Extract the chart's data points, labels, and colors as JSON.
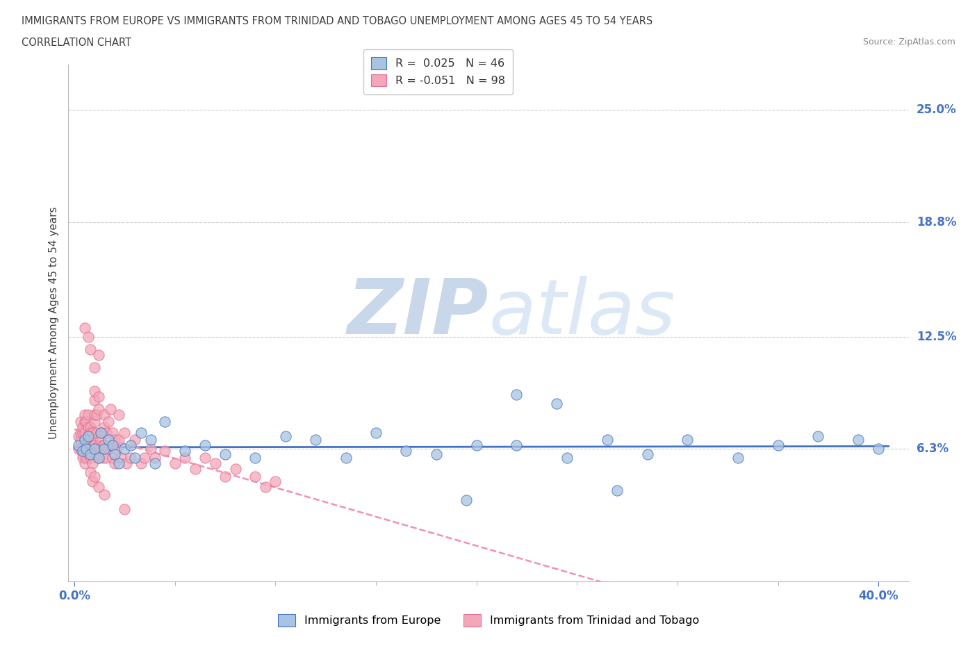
{
  "title_line1": "IMMIGRANTS FROM EUROPE VS IMMIGRANTS FROM TRINIDAD AND TOBAGO UNEMPLOYMENT AMONG AGES 45 TO 54 YEARS",
  "title_line2": "CORRELATION CHART",
  "source_text": "Source: ZipAtlas.com",
  "ylabel": "Unemployment Among Ages 45 to 54 years",
  "europe_color": "#a8c4e0",
  "europe_edge_color": "#4472c4",
  "tt_color": "#f4a7b9",
  "tt_edge_color": "#e07090",
  "europe_line_color": "#4472c4",
  "tt_line_color": "#f48fb1",
  "watermark_color": "#dce6f0",
  "background_color": "#ffffff",
  "grid_color": "#cccccc",
  "title_color": "#404040",
  "axis_label_color": "#4472c4",
  "ytick_values": [
    0.063,
    0.125,
    0.188,
    0.25
  ],
  "ytick_labels": [
    "6.3%",
    "12.5%",
    "18.8%",
    "25.0%"
  ],
  "xlim": [
    -0.003,
    0.415
  ],
  "ylim": [
    -0.01,
    0.275
  ],
  "europe_x": [
    0.002,
    0.004,
    0.005,
    0.006,
    0.007,
    0.008,
    0.01,
    0.012,
    0.013,
    0.015,
    0.017,
    0.019,
    0.02,
    0.022,
    0.025,
    0.028,
    0.03,
    0.033,
    0.038,
    0.04,
    0.045,
    0.055,
    0.065,
    0.075,
    0.09,
    0.105,
    0.12,
    0.135,
    0.15,
    0.165,
    0.18,
    0.2,
    0.22,
    0.245,
    0.265,
    0.285,
    0.305,
    0.33,
    0.35,
    0.37,
    0.39,
    0.4,
    0.22,
    0.24,
    0.195,
    0.27
  ],
  "europe_y": [
    0.065,
    0.062,
    0.068,
    0.063,
    0.07,
    0.06,
    0.063,
    0.058,
    0.072,
    0.063,
    0.068,
    0.065,
    0.06,
    0.055,
    0.063,
    0.065,
    0.058,
    0.072,
    0.068,
    0.055,
    0.078,
    0.062,
    0.065,
    0.06,
    0.058,
    0.07,
    0.068,
    0.058,
    0.072,
    0.062,
    0.06,
    0.065,
    0.065,
    0.058,
    0.068,
    0.06,
    0.068,
    0.058,
    0.065,
    0.07,
    0.068,
    0.063,
    0.093,
    0.088,
    0.035,
    0.04
  ],
  "tt_x": [
    0.002,
    0.002,
    0.003,
    0.003,
    0.003,
    0.003,
    0.004,
    0.004,
    0.004,
    0.004,
    0.004,
    0.005,
    0.005,
    0.005,
    0.005,
    0.005,
    0.006,
    0.006,
    0.006,
    0.006,
    0.007,
    0.007,
    0.007,
    0.007,
    0.007,
    0.008,
    0.008,
    0.008,
    0.008,
    0.008,
    0.009,
    0.009,
    0.009,
    0.009,
    0.01,
    0.01,
    0.01,
    0.01,
    0.01,
    0.011,
    0.011,
    0.011,
    0.012,
    0.012,
    0.012,
    0.012,
    0.013,
    0.013,
    0.013,
    0.014,
    0.014,
    0.014,
    0.015,
    0.015,
    0.015,
    0.016,
    0.016,
    0.017,
    0.017,
    0.018,
    0.018,
    0.019,
    0.019,
    0.02,
    0.02,
    0.021,
    0.022,
    0.022,
    0.023,
    0.025,
    0.026,
    0.028,
    0.03,
    0.033,
    0.035,
    0.038,
    0.04,
    0.045,
    0.05,
    0.055,
    0.06,
    0.065,
    0.07,
    0.075,
    0.08,
    0.09,
    0.095,
    0.1,
    0.005,
    0.007,
    0.008,
    0.01,
    0.012,
    0.008,
    0.009,
    0.01,
    0.012,
    0.015,
    0.025
  ],
  "tt_y": [
    0.063,
    0.07,
    0.063,
    0.068,
    0.072,
    0.078,
    0.065,
    0.06,
    0.058,
    0.072,
    0.075,
    0.063,
    0.055,
    0.072,
    0.078,
    0.082,
    0.065,
    0.078,
    0.058,
    0.062,
    0.082,
    0.06,
    0.068,
    0.075,
    0.07,
    0.075,
    0.068,
    0.058,
    0.065,
    0.072,
    0.072,
    0.063,
    0.055,
    0.068,
    0.09,
    0.095,
    0.065,
    0.078,
    0.082,
    0.072,
    0.06,
    0.082,
    0.085,
    0.092,
    0.058,
    0.065,
    0.072,
    0.068,
    0.063,
    0.058,
    0.072,
    0.065,
    0.075,
    0.082,
    0.065,
    0.072,
    0.058,
    0.063,
    0.078,
    0.065,
    0.085,
    0.058,
    0.072,
    0.068,
    0.055,
    0.063,
    0.068,
    0.082,
    0.058,
    0.072,
    0.055,
    0.058,
    0.068,
    0.055,
    0.058,
    0.063,
    0.058,
    0.062,
    0.055,
    0.058,
    0.052,
    0.058,
    0.055,
    0.048,
    0.052,
    0.048,
    0.042,
    0.045,
    0.13,
    0.125,
    0.118,
    0.108,
    0.115,
    0.05,
    0.045,
    0.048,
    0.042,
    0.038,
    0.03
  ]
}
